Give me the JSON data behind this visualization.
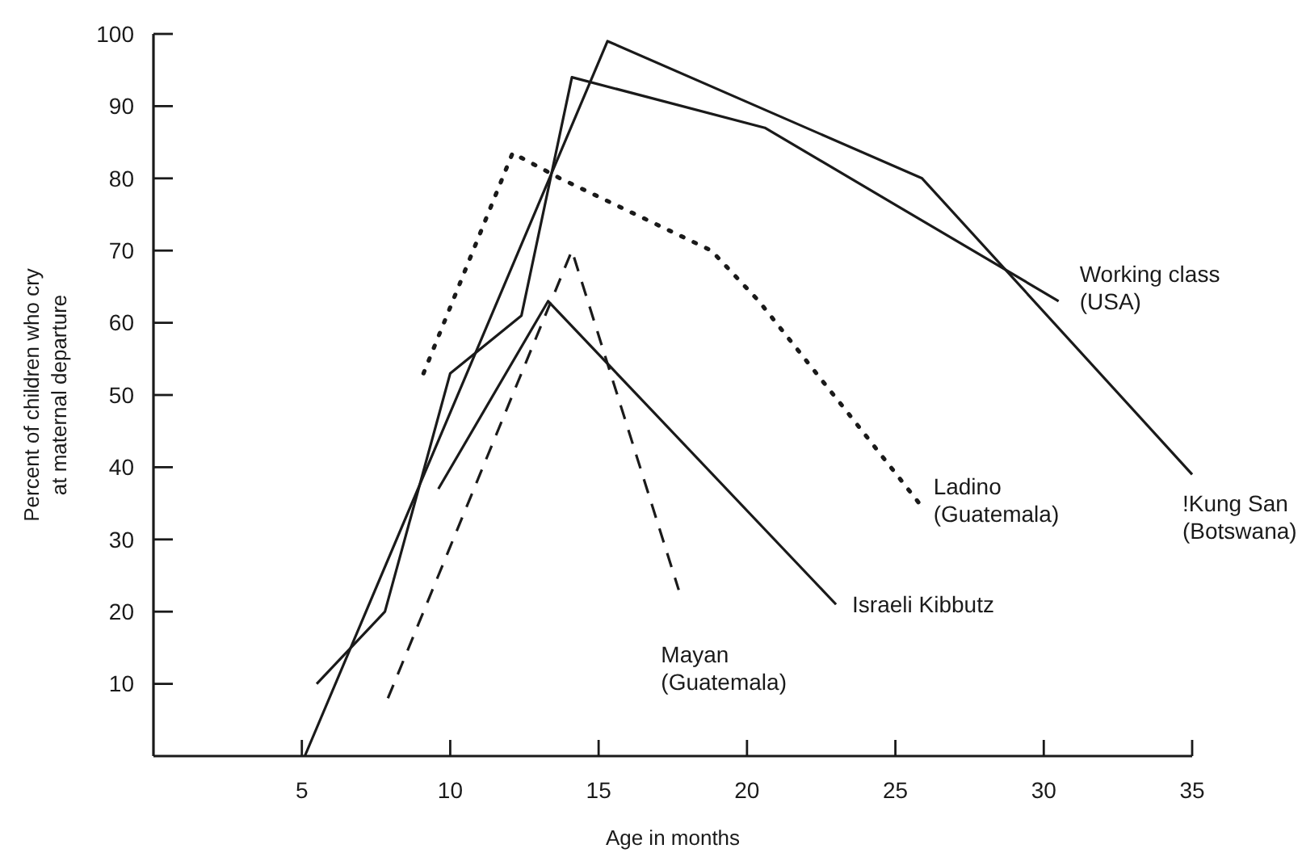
{
  "chart_data": {
    "type": "line",
    "xlabel": "Age in months",
    "ylabel": "Percent of children who cry at maternal departure",
    "xlim": [
      0,
      35
    ],
    "ylim": [
      0,
      100
    ],
    "xticks": [
      5,
      10,
      15,
      20,
      25,
      30,
      35
    ],
    "yticks": [
      10,
      20,
      30,
      40,
      50,
      60,
      70,
      80,
      90,
      100
    ],
    "grid": false,
    "marker": "none",
    "series": [
      {
        "name": "Working class (USA)",
        "color": "#1a1a1a",
        "line_style": "solid",
        "x": [
          5.5,
          7.8,
          10,
          12.4,
          14.1,
          20.6,
          30.5
        ],
        "values": [
          10,
          20,
          53,
          61,
          94,
          87,
          63
        ]
      },
      {
        "name": "!Kung San (Botswana)",
        "color": "#1a1a1a",
        "line_style": "solid",
        "x": [
          5.1,
          15.3,
          25.9,
          35
        ],
        "values": [
          0,
          99,
          80,
          39
        ]
      },
      {
        "name": "Israeli Kibbutz",
        "color": "#1a1a1a",
        "line_style": "solid",
        "x": [
          9.6,
          13.3,
          23
        ],
        "values": [
          37,
          63,
          21
        ]
      },
      {
        "name": "Mayan (Guatemala)",
        "color": "#1a1a1a",
        "line_style": "dashed",
        "x": [
          7.9,
          14.1,
          17.7
        ],
        "values": [
          8,
          70,
          23
        ]
      },
      {
        "name": "Ladino (Guatemala)",
        "color": "#1a1a1a",
        "line_style": "dotted",
        "x": [
          9.1,
          12.1,
          13.7,
          18.8,
          20.4,
          23.5,
          25.9
        ],
        "values": [
          53,
          83.5,
          80,
          70,
          63,
          47,
          34.5
        ]
      }
    ]
  }
}
